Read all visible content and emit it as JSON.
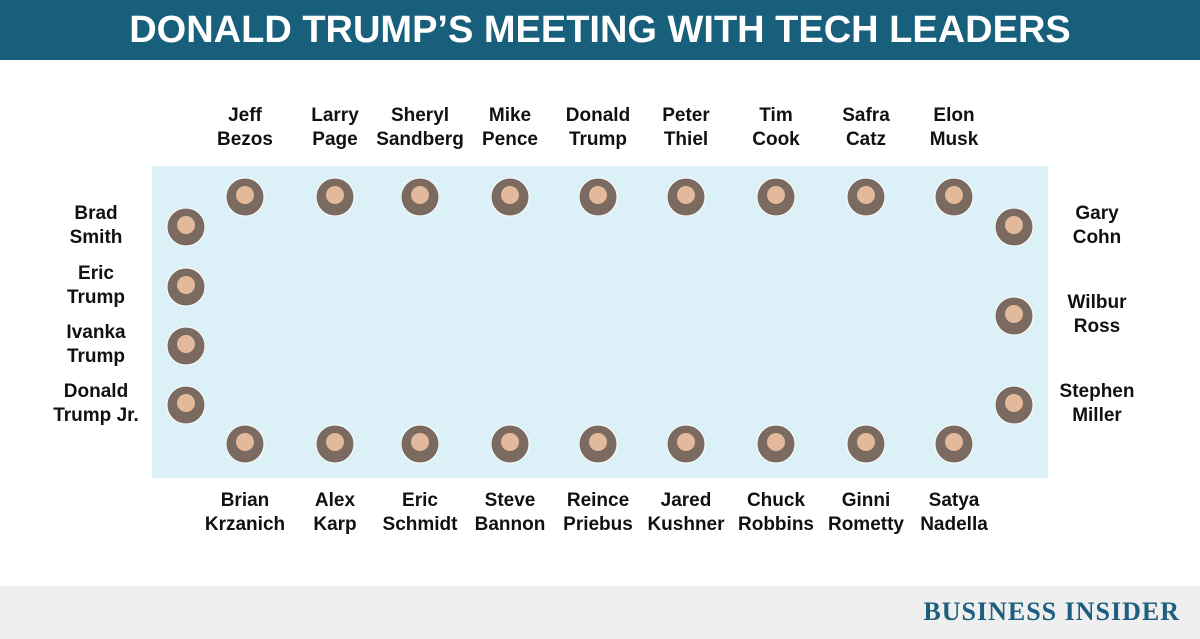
{
  "header": {
    "title": "DONALD TRUMP’S MEETING WITH TECH LEADERS"
  },
  "top": [
    {
      "lines": [
        "Jeff",
        "Bezos"
      ]
    },
    {
      "lines": [
        "Larry",
        "Page"
      ]
    },
    {
      "lines": [
        "Sheryl",
        "Sandberg"
      ]
    },
    {
      "lines": [
        "Mike",
        "Pence"
      ]
    },
    {
      "lines": [
        "Donald",
        "Trump"
      ]
    },
    {
      "lines": [
        "Peter",
        "Thiel"
      ]
    },
    {
      "lines": [
        "Tim",
        "Cook"
      ]
    },
    {
      "lines": [
        "Safra",
        "Catz"
      ]
    },
    {
      "lines": [
        "Elon",
        "Musk"
      ]
    }
  ],
  "bottom": [
    {
      "lines": [
        "Brian",
        "Krzanich"
      ]
    },
    {
      "lines": [
        "Alex",
        "Karp"
      ]
    },
    {
      "lines": [
        "Eric",
        "Schmidt"
      ]
    },
    {
      "lines": [
        "Steve",
        "Bannon"
      ]
    },
    {
      "lines": [
        "Reince",
        "Priebus"
      ]
    },
    {
      "lines": [
        "Jared",
        "Kushner"
      ]
    },
    {
      "lines": [
        "Chuck",
        "Robbins"
      ]
    },
    {
      "lines": [
        "Ginni",
        "Rometty"
      ]
    },
    {
      "lines": [
        "Satya",
        "Nadella"
      ]
    }
  ],
  "left": [
    {
      "lines": [
        "Brad",
        "Smith"
      ]
    },
    {
      "lines": [
        "Eric",
        "Trump"
      ]
    },
    {
      "lines": [
        "Ivanka",
        "Trump"
      ]
    },
    {
      "lines": [
        "Donald",
        "Trump Jr."
      ]
    }
  ],
  "right": [
    {
      "lines": [
        "Gary",
        "Cohn"
      ]
    },
    {
      "lines": [
        "Wilbur",
        "Ross"
      ]
    },
    {
      "lines": [
        "Stephen",
        "Miller"
      ]
    }
  ],
  "footer": {
    "brand": "BUSINESS INSIDER"
  }
}
